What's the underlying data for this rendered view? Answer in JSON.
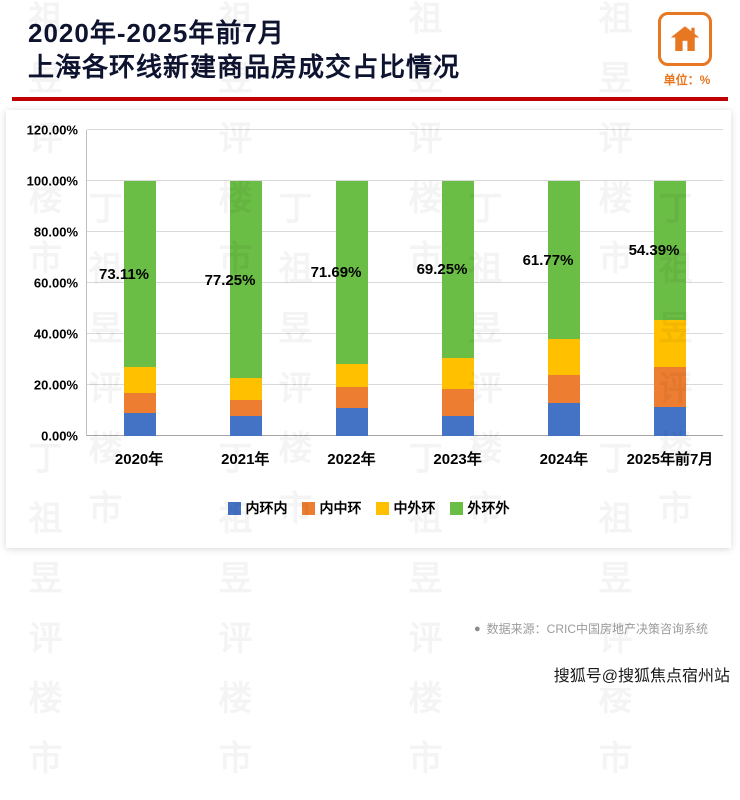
{
  "header": {
    "title_line1": "2020年-2025年前7月",
    "title_line2": "上海各环线新建商品房成交占比情况",
    "unit_label": "单位：%",
    "accent_red": "#c00000",
    "icon_orange": "#e87722"
  },
  "chart_data": {
    "type": "bar",
    "stacked": true,
    "stacked_total": 100,
    "title": "2020年-2025年前7月 上海各环线新建商品房成交占比情况",
    "categories": [
      "2020年",
      "2021年",
      "2022年",
      "2023年",
      "2024年",
      "2025年前7月"
    ],
    "series": [
      {
        "name": "内环内",
        "color": "#4472c4",
        "values": [
          9.0,
          8.0,
          11.0,
          8.0,
          13.0,
          11.5
        ]
      },
      {
        "name": "内中环",
        "color": "#ed7d31",
        "values": [
          8.0,
          6.0,
          8.3,
          10.5,
          11.0,
          15.5
        ]
      },
      {
        "name": "中外环",
        "color": "#ffc000",
        "values": [
          9.89,
          8.75,
          9.01,
          12.25,
          14.23,
          18.61
        ]
      },
      {
        "name": "外环外",
        "color": "#6abd45",
        "values": [
          73.11,
          77.25,
          71.69,
          69.25,
          61.77,
          54.39
        ]
      }
    ],
    "data_labels": {
      "series": "外环外",
      "values": [
        "73.11%",
        "77.25%",
        "71.69%",
        "69.25%",
        "61.77%",
        "54.39%"
      ]
    },
    "y_axis": {
      "min": 0,
      "max": 120,
      "step": 20,
      "tick_labels": [
        "0.00%",
        "20.00%",
        "40.00%",
        "60.00%",
        "80.00%",
        "100.00%",
        "120.00%"
      ]
    },
    "legend_position": "bottom",
    "grid": true
  },
  "footer": {
    "bullet": "●",
    "source_text": "数据来源：CRIC中国房地产决策咨询系统"
  },
  "branding": {
    "sohu_tag": "搜狐号@搜狐焦点宿州站"
  },
  "watermark": {
    "text": "丁祖昱评楼市"
  }
}
